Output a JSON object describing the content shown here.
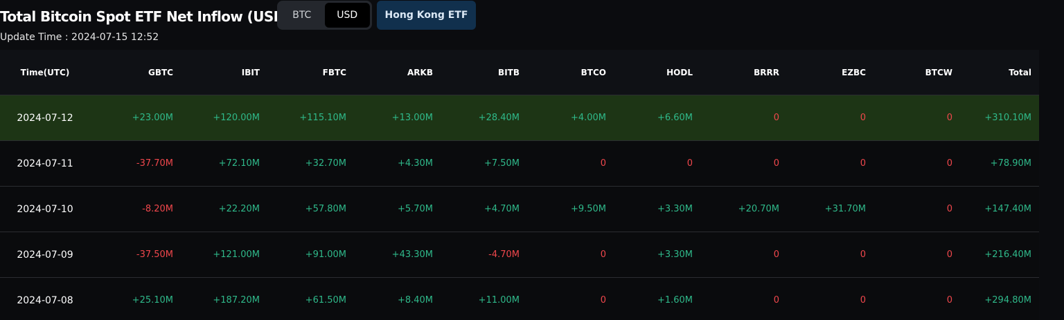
{
  "header": {
    "title": "Total Bitcoin Spot ETF Net Inflow (USD)",
    "unit_toggle": [
      "BTC",
      "USD"
    ],
    "selected_unit": "USD",
    "region_button": "Hong Kong ETF",
    "update_time": "Update Time : 2024-07-15 12:52"
  },
  "table": {
    "columns": [
      "Time(UTC)",
      "GBTC",
      "IBIT",
      "FBTC",
      "ARKB",
      "BITB",
      "BTCO",
      "HODL",
      "BRRR",
      "EZBC",
      "BTCW",
      "Total"
    ],
    "rows": [
      [
        "2024-07-12",
        "+23.00M",
        "+120.00M",
        "+115.10M",
        "+13.00M",
        "+28.40M",
        "+4.00M",
        "+6.60M",
        "0",
        "0",
        "0",
        "+310.10M"
      ],
      [
        "2024-07-11",
        "-37.70M",
        "+72.10M",
        "+32.70M",
        "+4.30M",
        "+7.50M",
        "0",
        "0",
        "0",
        "0",
        "0",
        "+78.90M"
      ],
      [
        "2024-07-10",
        "-8.20M",
        "+22.20M",
        "+57.80M",
        "+5.70M",
        "+4.70M",
        "+9.50M",
        "+3.30M",
        "+20.70M",
        "+31.70M",
        "0",
        "+147.40M"
      ],
      [
        "2024-07-09",
        "-37.50M",
        "+121.00M",
        "+91.00M",
        "+43.30M",
        "-4.70M",
        "0",
        "+3.30M",
        "0",
        "0",
        "0",
        "+216.40M"
      ],
      [
        "2024-07-08",
        "+25.10M",
        "+187.20M",
        "+61.50M",
        "+8.40M",
        "+11.00M",
        "0",
        "+1.60M",
        "0",
        "0",
        "0",
        "+294.80M"
      ]
    ],
    "highlighted_row": 0
  }
}
